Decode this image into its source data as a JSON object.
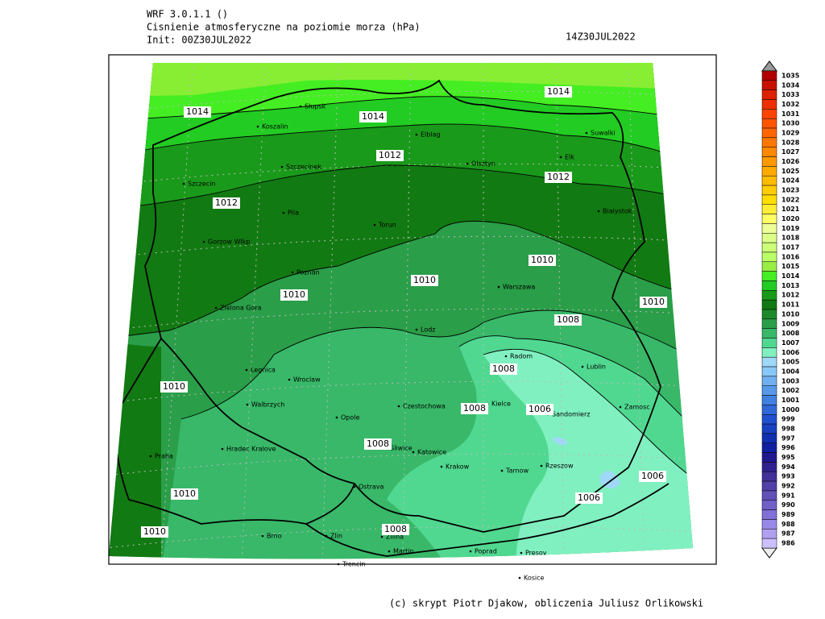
{
  "header": {
    "model": "WRF 3.0.1.1 ()",
    "title": "Cisnienie atmosferyczne na poziomie morza (hPa)",
    "init": "Init: 00Z30JUL2022",
    "valid": "14Z30JUL2022"
  },
  "cities": [
    "Slupsk",
    "Koszalin",
    "Elblag",
    "Suwalki",
    "Elk",
    "Olsztyn",
    "Szczecinek",
    "Szczecin",
    "Bialystok",
    "Pila",
    "Torun",
    "Gorzow Wlkp",
    "Poznan",
    "Warszawa",
    "Zielona Gora",
    "Lodz",
    "Radom",
    "Lublin",
    "Legnica",
    "Wroclaw",
    "Walbrzych",
    "Czestochowa",
    "Kielce",
    "Sandomierz",
    "Zamosc",
    "Opole",
    "Hradec Kralove",
    "Gliwice",
    "Katowice",
    "Krakow",
    "Tarnow",
    "Rzeszow",
    "Praha",
    "Ostrava",
    "Brno",
    "Zlin",
    "Zilina",
    "Martin",
    "Poprad",
    "Presov",
    "Trencin",
    "Kosice"
  ],
  "isobar_labels": [
    1014,
    1014,
    1014,
    1012,
    1012,
    1012,
    1010,
    1010,
    1010,
    1010,
    1008,
    1008,
    1008,
    1006,
    1008,
    1006,
    1006,
    1010,
    1010,
    1010,
    1008
  ],
  "colorbar": {
    "levels": [
      1035,
      1034,
      1033,
      1032,
      1031,
      1030,
      1029,
      1028,
      1027,
      1026,
      1025,
      1024,
      1023,
      1022,
      1021,
      1020,
      1019,
      1018,
      1017,
      1016,
      1015,
      1014,
      1013,
      1012,
      1011,
      1010,
      1009,
      1008,
      1007,
      1006,
      1005,
      1004,
      1003,
      1002,
      1001,
      1000,
      999,
      998,
      997,
      996,
      995,
      994,
      993,
      992,
      991,
      990,
      989,
      988,
      987,
      986
    ],
    "colors": [
      "#b00000",
      "#c81000",
      "#dc2000",
      "#ee3000",
      "#ff4400",
      "#ff5500",
      "#ff6600",
      "#ff7700",
      "#ff8800",
      "#ff9900",
      "#ffaa00",
      "#ffbb00",
      "#ffcc00",
      "#ffdd00",
      "#ffee33",
      "#ffff66",
      "#eeff99",
      "#ddff88",
      "#ccff77",
      "#bbff66",
      "#99ee44",
      "#44ee22",
      "#22cc22",
      "#1a9a1a",
      "#127a12",
      "#1c8a2a",
      "#2a9e48",
      "#38b868",
      "#50d890",
      "#80f0c0",
      "#a0d8f8",
      "#88c8f8",
      "#70b0f0",
      "#5898e8",
      "#4080e0",
      "#3068d8",
      "#2050d0",
      "#1840c0",
      "#1030b0",
      "#1020a0",
      "#201890",
      "#302090",
      "#403098",
      "#5040a8",
      "#6050b8",
      "#7060c8",
      "#8070d8",
      "#9888e8",
      "#b0a0f0",
      "#ccc0ff"
    ]
  },
  "footer": "(c) skrypt Piotr Djakow, obliczenia Juliusz Orlikowski"
}
